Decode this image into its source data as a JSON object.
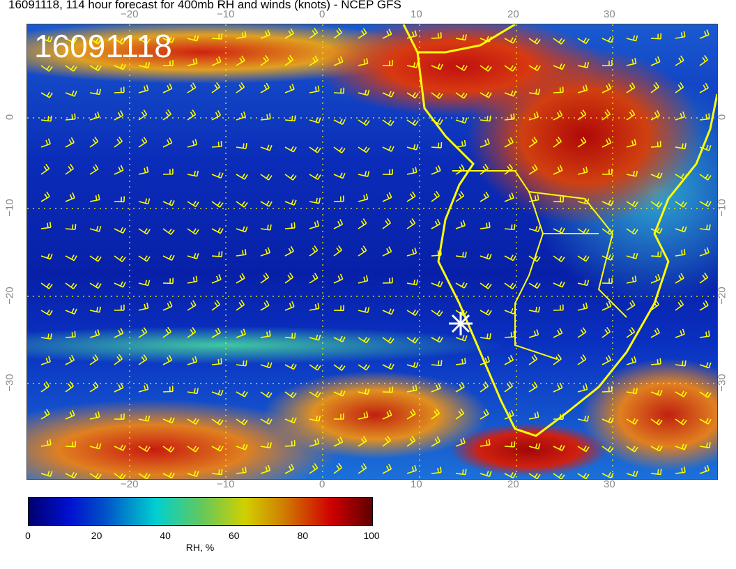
{
  "title": "16091118, 114 hour forecast for 400mb RH and winds (knots) - NCEP GFS",
  "stamp": "16091118",
  "lon_ticks": [
    "−20",
    "−10",
    "0",
    "10",
    "20",
    "30"
  ],
  "lat_ticks": [
    "0",
    "−10",
    "−20",
    "−30"
  ],
  "colorbar": {
    "ticks": [
      "0",
      "20",
      "40",
      "60",
      "80",
      "100"
    ],
    "label": "RH, %",
    "range": [
      0,
      100
    ],
    "colors": [
      "#000070",
      "#0010d0",
      "#00d0d0",
      "#d0d000",
      "#d00000",
      "#600000"
    ]
  },
  "overlay_color": "#ffff00",
  "marker": "white-star"
}
